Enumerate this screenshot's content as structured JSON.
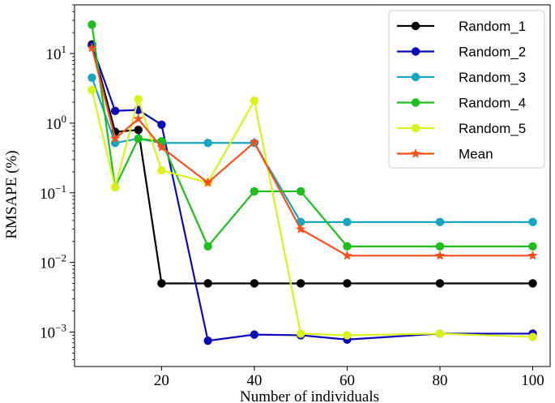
{
  "chart_data": {
    "type": "line",
    "title": "",
    "xlabel": "Number of individuals",
    "ylabel": "RMSAPE (%)",
    "yscale": "log",
    "xlim": [
      1.25,
      103.75
    ],
    "ylim": [
      0.00032,
      50
    ],
    "x": [
      5,
      10,
      15,
      20,
      30,
      40,
      50,
      60,
      80,
      100
    ],
    "x_ticks": [
      20,
      40,
      60,
      80,
      100
    ],
    "y_ticks": [
      {
        "value": 10,
        "base": "10",
        "exp": "1"
      },
      {
        "value": 1,
        "base": "10",
        "exp": "0"
      },
      {
        "value": 0.1,
        "base": "10",
        "exp": "−1"
      },
      {
        "value": 0.01,
        "base": "10",
        "exp": "−2"
      },
      {
        "value": 0.001,
        "base": "10",
        "exp": "−3"
      }
    ],
    "legend_position": "top-right",
    "series": [
      {
        "name": "Random_1",
        "color": "#000000",
        "marker": "circle",
        "values": [
          13.5,
          0.75,
          0.8,
          0.005,
          0.005,
          0.005,
          0.005,
          0.005,
          0.005,
          0.005
        ]
      },
      {
        "name": "Random_2",
        "color": "#0b0bb5",
        "marker": "circle",
        "values": [
          13,
          1.5,
          1.55,
          0.95,
          0.00075,
          0.00092,
          0.0009,
          0.00078,
          0.00095,
          0.00095
        ]
      },
      {
        "name": "Random_3",
        "color": "#17a6bd",
        "marker": "circle",
        "values": [
          4.5,
          0.52,
          0.6,
          0.52,
          0.52,
          0.52,
          0.038,
          0.038,
          0.038,
          0.038
        ]
      },
      {
        "name": "Random_4",
        "color": "#1fbe1f",
        "marker": "circle",
        "values": [
          26,
          0.12,
          0.6,
          0.55,
          0.017,
          0.105,
          0.105,
          0.017,
          0.017,
          0.017
        ]
      },
      {
        "name": "Random_5",
        "color": "#d9f21c",
        "marker": "circle",
        "values": [
          3.0,
          0.12,
          2.2,
          0.21,
          0.14,
          2.1,
          0.00095,
          0.0009,
          0.00095,
          0.00085
        ]
      },
      {
        "name": "Mean",
        "color": "#f4511e",
        "marker": "star",
        "values": [
          12,
          0.6,
          1.15,
          0.45,
          0.14,
          0.53,
          0.03,
          0.0125,
          0.0125,
          0.0125
        ]
      }
    ]
  }
}
